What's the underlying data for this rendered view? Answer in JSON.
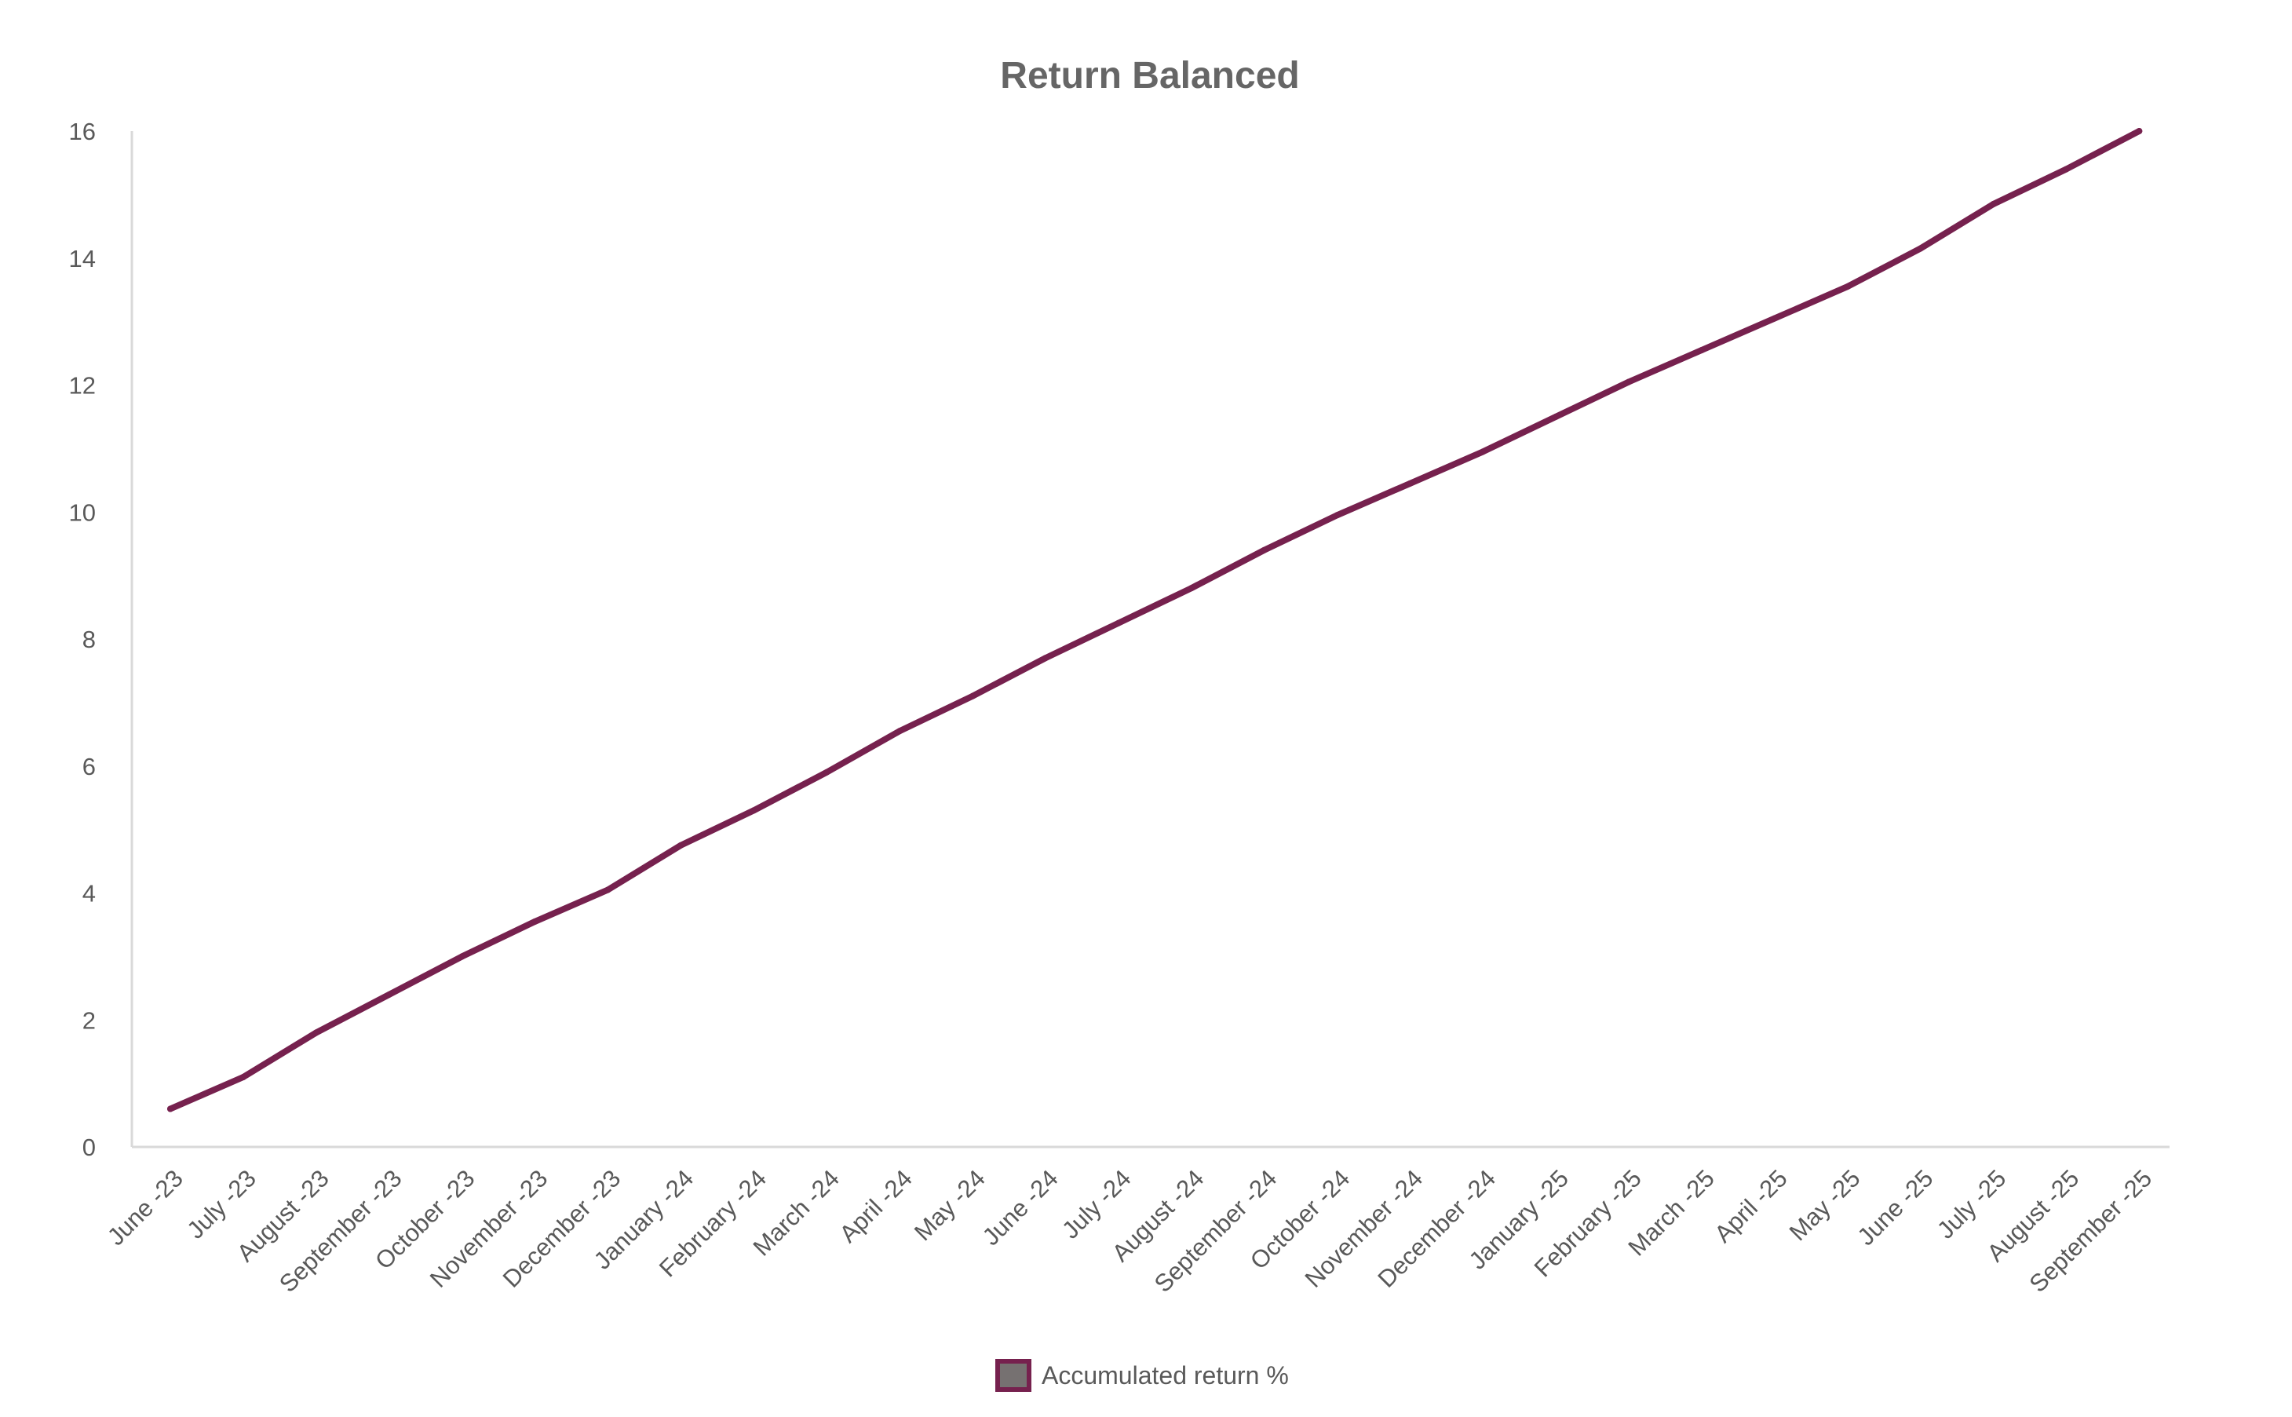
{
  "chart_data": {
    "type": "line",
    "title": "Return Balanced",
    "xlabel": "",
    "ylabel": "",
    "ylim": [
      0,
      16
    ],
    "yticks": [
      "0",
      "2",
      "4",
      "6",
      "8",
      "10",
      "12",
      "14",
      "16"
    ],
    "grid": false,
    "legend_position": "bottom-center",
    "categories": [
      "June -23",
      "July -23",
      "August -23",
      "September -23",
      "October -23",
      "November -23",
      "December -23",
      "January -24",
      "February -24",
      "March -24",
      "April -24",
      "May -24",
      "June -24",
      "July -24",
      "August -24",
      "September -24",
      "October -24",
      "November -24",
      "December -24",
      "January -25",
      "February -25",
      "March -25",
      "April -25",
      "May -25",
      "June -25",
      "July -25",
      "August -25",
      "September -25"
    ],
    "series": [
      {
        "name": "Accumulated return %",
        "color": "#76214e",
        "values": [
          0.6,
          1.1,
          1.8,
          2.4,
          3.0,
          3.55,
          4.05,
          4.75,
          5.3,
          5.9,
          6.55,
          7.1,
          7.7,
          8.25,
          8.8,
          9.4,
          9.95,
          10.45,
          10.95,
          11.5,
          12.05,
          12.55,
          13.05,
          13.55,
          14.15,
          14.85,
          15.4,
          16.0
        ]
      }
    ],
    "colors": {
      "axis": "#d9d9d9",
      "text": "#595959",
      "title": "#666666",
      "line": "#76214e",
      "legend_fill": "#767171"
    }
  }
}
